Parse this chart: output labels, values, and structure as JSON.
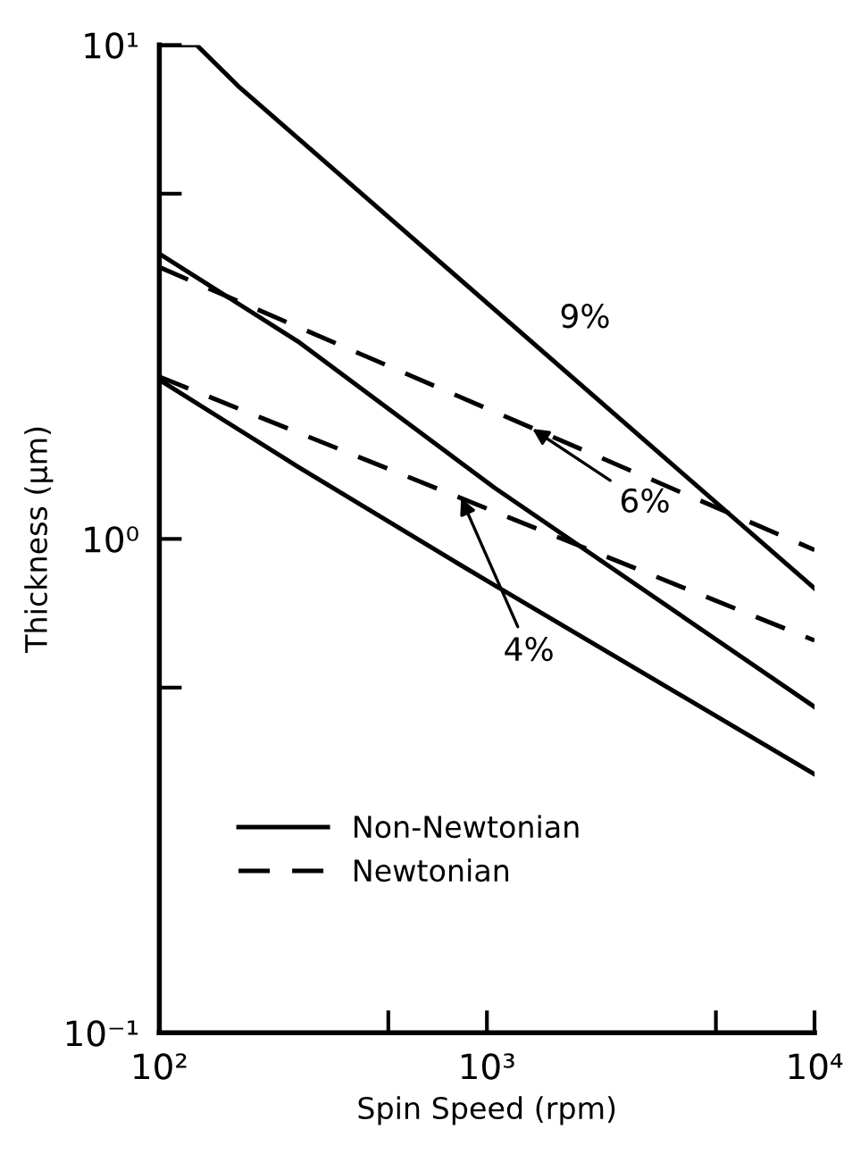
{
  "chart_data": {
    "type": "line",
    "xlabel": "Spin Speed (rpm)",
    "ylabel": "Thickness (μm)",
    "log": "xy",
    "xlim": [
      100,
      10000
    ],
    "ylim": [
      0.1,
      10
    ],
    "xticks": [
      {
        "value": 100,
        "label": "10²"
      },
      {
        "value": 500,
        "label": null
      },
      {
        "value": 1000,
        "label": "10³"
      },
      {
        "value": 5000,
        "label": null
      },
      {
        "value": 10000,
        "label": "10⁴"
      }
    ],
    "yticks": [
      {
        "value": 0.1,
        "label": "10⁻¹"
      },
      {
        "value": 0.5,
        "label": null
      },
      {
        "value": 1,
        "label": "10⁰"
      },
      {
        "value": 5,
        "label": null
      },
      {
        "value": 10,
        "label": "10¹"
      }
    ],
    "grid": false,
    "legend": "bottom left",
    "marker": "none",
    "series": [
      {
        "name": "Non-Newtonian",
        "color": "#000000",
        "line_style": "solid",
        "x": [
          100,
          130,
          174,
          10000
        ],
        "values": [
          10,
          10,
          8.26,
          0.794
        ]
      },
      {
        "color": "#000000",
        "line_style": "solid",
        "x": [
          100,
          265,
          1054,
          10000
        ],
        "values": [
          3.78,
          2.51,
          1.27,
          0.457
        ]
      },
      {
        "color": "#000000",
        "line_style": "solid",
        "x": [
          100,
          265,
          771,
          1054,
          10000
        ],
        "values": [
          2.1,
          1.4,
          0.912,
          0.806,
          0.334
        ]
      },
      {
        "name": "Newtonian",
        "color": "#000000",
        "line_style": "dashed",
        "x": [
          100,
          10000
        ],
        "values": [
          3.55,
          0.95
        ]
      },
      {
        "color": "#000000",
        "line_style": "dashed",
        "x": [
          100,
          10000
        ],
        "values": [
          2.13,
          0.623
        ]
      }
    ],
    "annotations": [
      {
        "text": "9%",
        "x": 1664,
        "y": 2.24
      },
      {
        "text": "6%",
        "x": 1377,
        "y": 1.67
      },
      {
        "text": "4%",
        "x": 834,
        "y": 1.21
      }
    ]
  }
}
